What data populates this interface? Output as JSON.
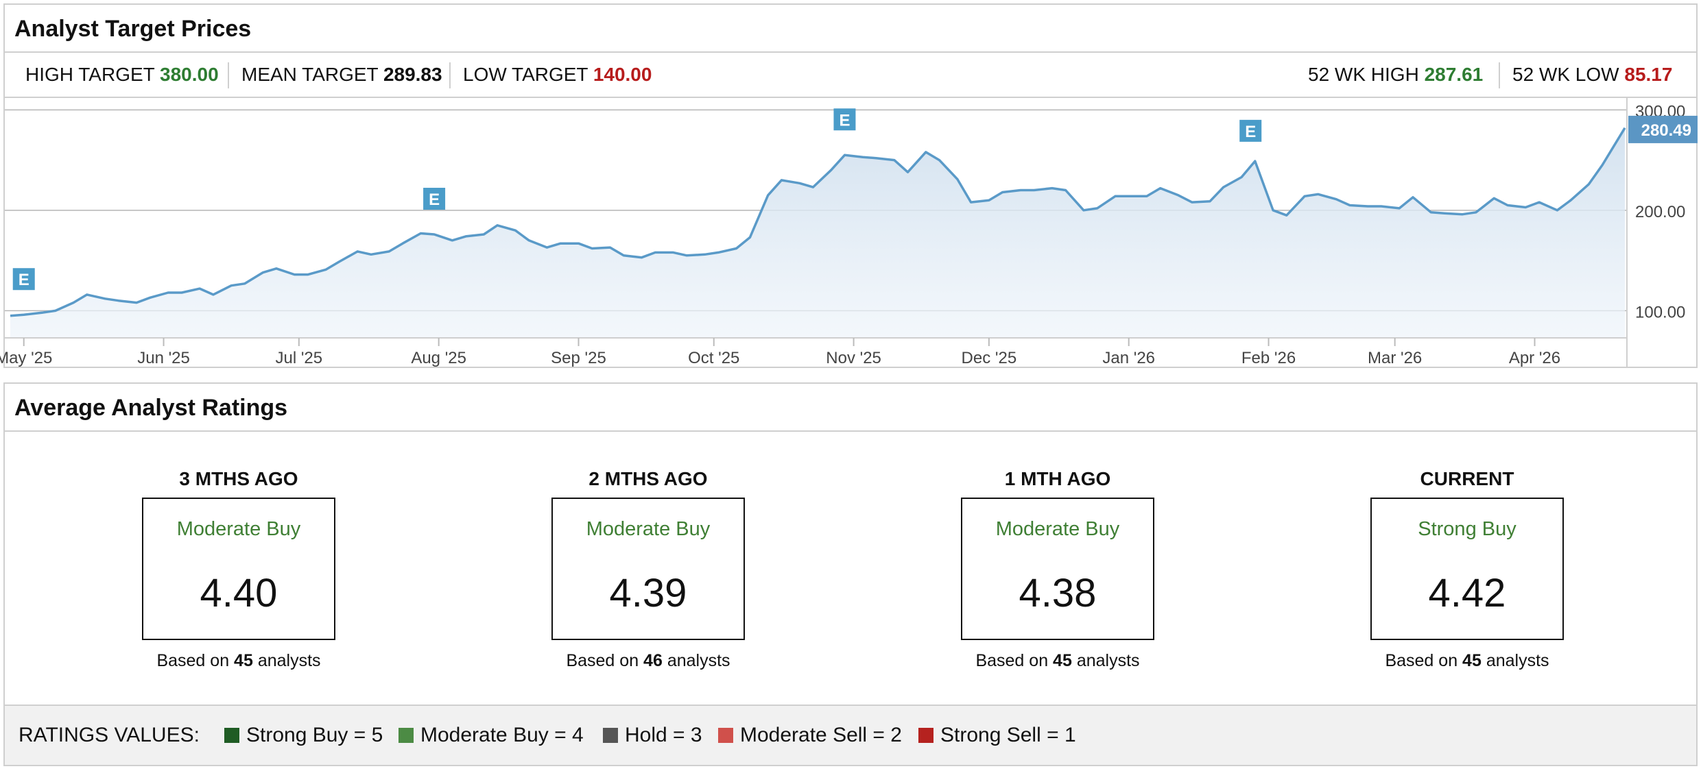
{
  "target_panel": {
    "title": "Analyst Target Prices",
    "high_target": {
      "label": "HIGH TARGET",
      "value": "380.00"
    },
    "mean_target": {
      "label": "MEAN TARGET",
      "value": "289.83"
    },
    "low_target": {
      "label": "LOW TARGET",
      "value": "140.00"
    },
    "wk52_high": {
      "label": "52 WK HIGH",
      "value": "287.61"
    },
    "wk52_low": {
      "label": "52 WK LOW",
      "value": "85.17"
    }
  },
  "chart_data": {
    "type": "area",
    "title": "",
    "xlabel": "",
    "ylabel": "",
    "x_tick_labels": [
      "May '25",
      "Jun '25",
      "Jul '25",
      "Aug '25",
      "Sep '25",
      "Oct '25",
      "Nov '25",
      "Dec '25",
      "Jan '26",
      "Feb '26",
      "Mar '26",
      "Apr '26"
    ],
    "y_tick_labels": [
      "100.00",
      "200.00",
      "300.00"
    ],
    "yticks": [
      100,
      200,
      300
    ],
    "ylim": [
      75,
      305
    ],
    "x_start": "2025-04-28",
    "x_end": "2026-04-21",
    "grid": true,
    "current_value": 280.49,
    "current_label": "280.49",
    "earnings_marker_label": "E",
    "earnings_dates": [
      "2025-05-01",
      "2025-07-31",
      "2025-10-30",
      "2026-01-28"
    ],
    "colors": {
      "line": "#5a9ac8",
      "marker": "#4a9cc9",
      "price_tag": "#5b96c4"
    },
    "series": [
      {
        "x": [
          "2025-04-28",
          "2025-05-01",
          "2025-05-05",
          "2025-05-08",
          "2025-05-12",
          "2025-05-15",
          "2025-05-19",
          "2025-05-22",
          "2025-05-26",
          "2025-05-29",
          "2025-06-02",
          "2025-06-05",
          "2025-06-09",
          "2025-06-12",
          "2025-06-16",
          "2025-06-19",
          "2025-06-23",
          "2025-06-26",
          "2025-06-30",
          "2025-07-03",
          "2025-07-07",
          "2025-07-10",
          "2025-07-14",
          "2025-07-17",
          "2025-07-21",
          "2025-07-24",
          "2025-07-28",
          "2025-07-31",
          "2025-08-04",
          "2025-08-07",
          "2025-08-11",
          "2025-08-14",
          "2025-08-18",
          "2025-08-21",
          "2025-08-25",
          "2025-08-28",
          "2025-09-01",
          "2025-09-04",
          "2025-09-08",
          "2025-09-11",
          "2025-09-15",
          "2025-09-18",
          "2025-09-22",
          "2025-09-25",
          "2025-09-29",
          "2025-10-02",
          "2025-10-06",
          "2025-10-09",
          "2025-10-13",
          "2025-10-16",
          "2025-10-20",
          "2025-10-23",
          "2025-10-27",
          "2025-10-30",
          "2025-11-03",
          "2025-11-06",
          "2025-11-10",
          "2025-11-13",
          "2025-11-17",
          "2025-11-20",
          "2025-11-24",
          "2025-11-27",
          "2025-12-01",
          "2025-12-04",
          "2025-12-08",
          "2025-12-11",
          "2025-12-15",
          "2025-12-18",
          "2025-12-22",
          "2025-12-25",
          "2025-12-29",
          "2026-01-01",
          "2026-01-05",
          "2026-01-08",
          "2026-01-12",
          "2026-01-15",
          "2026-01-19",
          "2026-01-22",
          "2026-01-26",
          "2026-01-29",
          "2026-02-02",
          "2026-02-05",
          "2026-02-09",
          "2026-02-12",
          "2026-02-16",
          "2026-02-19",
          "2026-02-23",
          "2026-02-26",
          "2026-03-02",
          "2026-03-05",
          "2026-03-09",
          "2026-03-12",
          "2026-03-16",
          "2026-03-19",
          "2026-03-23",
          "2026-03-26",
          "2026-03-30",
          "2026-04-02",
          "2026-04-06",
          "2026-04-09",
          "2026-04-13",
          "2026-04-16",
          "2026-04-21"
        ],
        "values": [
          95,
          96,
          98,
          100,
          108,
          116,
          112,
          110,
          108,
          113,
          118,
          118,
          122,
          116,
          125,
          127,
          138,
          142,
          136,
          136,
          141,
          149,
          159,
          156,
          159,
          167,
          177,
          176,
          170,
          174,
          176,
          185,
          180,
          170,
          163,
          167,
          167,
          162,
          163,
          155,
          153,
          158,
          158,
          155,
          156,
          158,
          162,
          173,
          215,
          230,
          227,
          223,
          240,
          255,
          253,
          252,
          250,
          238,
          258,
          250,
          231,
          208,
          210,
          218,
          220,
          220,
          222,
          220,
          200,
          202,
          214,
          214,
          214,
          222,
          215,
          208,
          209,
          223,
          233,
          249,
          200,
          195,
          214,
          216,
          211,
          205,
          204,
          204,
          202,
          213,
          198,
          197,
          196,
          198,
          212,
          205,
          203,
          208,
          200,
          210,
          226,
          245,
          282
        ]
      }
    ]
  },
  "ratings_panel": {
    "title": "Average Analyst Ratings",
    "columns": [
      {
        "period": "3 MTHS AGO",
        "rating": "Moderate Buy",
        "score": "4.40",
        "basis_prefix": "Based on",
        "count": "45",
        "basis_suffix": "analysts"
      },
      {
        "period": "2 MTHS AGO",
        "rating": "Moderate Buy",
        "score": "4.39",
        "basis_prefix": "Based on",
        "count": "46",
        "basis_suffix": "analysts"
      },
      {
        "period": "1 MTH AGO",
        "rating": "Moderate Buy",
        "score": "4.38",
        "basis_prefix": "Based on",
        "count": "45",
        "basis_suffix": "analysts"
      },
      {
        "period": "CURRENT",
        "rating": "Strong Buy",
        "score": "4.42",
        "basis_prefix": "Based on",
        "count": "45",
        "basis_suffix": "analysts"
      }
    ],
    "legend": {
      "title": "RATINGS VALUES:",
      "items": [
        {
          "label": "Strong Buy = 5",
          "color": "#1f5c24"
        },
        {
          "label": "Moderate Buy = 4",
          "color": "#4c8b44"
        },
        {
          "label": "Hold = 3",
          "color": "#555555"
        },
        {
          "label": "Moderate Sell = 2",
          "color": "#d0504b"
        },
        {
          "label": "Strong Sell = 1",
          "color": "#b5221f"
        }
      ]
    }
  }
}
